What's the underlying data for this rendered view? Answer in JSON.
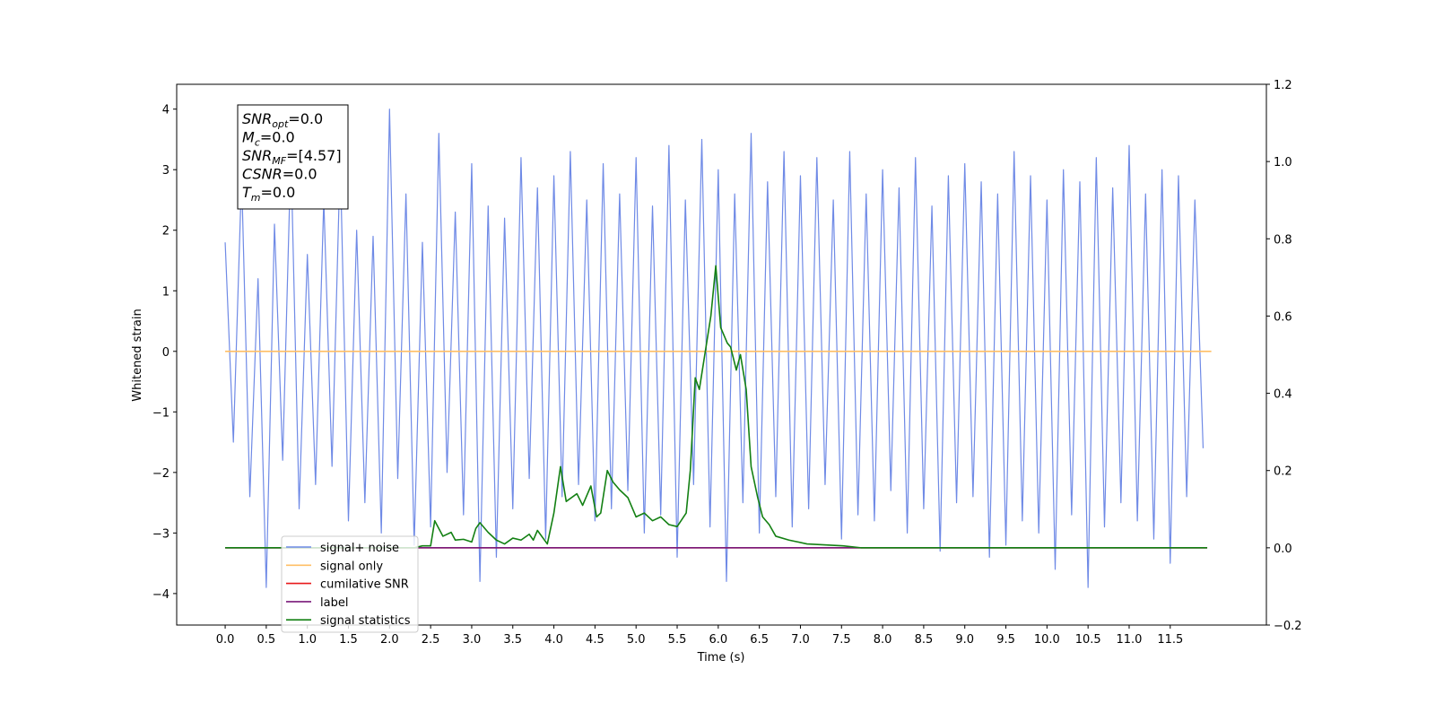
{
  "chart_data": {
    "type": "line",
    "xlabel": "Time (s)",
    "ylabel": "Whitened strain",
    "xlim": [
      -0.59,
      12.67
    ],
    "ylim": [
      -4.52,
      4.41
    ],
    "y2lim": [
      -0.2,
      1.2
    ],
    "xticks": [
      {
        "value": 0,
        "label": "0.0"
      },
      0.5,
      {
        "value": 1,
        "label": "1.0"
      },
      1.5,
      {
        "value": 2,
        "label": "2.0"
      },
      2.5,
      {
        "value": 3,
        "label": "3.0"
      },
      3.5,
      {
        "value": 4,
        "label": "4.0"
      },
      4.5,
      {
        "value": 5,
        "label": "5.0"
      },
      5.5,
      {
        "value": 6,
        "label": "6.0"
      },
      6.5,
      {
        "value": 7,
        "label": "7.0"
      },
      7.5,
      {
        "value": 8,
        "label": "8.0"
      },
      8.5,
      {
        "value": 9,
        "label": "9.0"
      },
      9.5,
      {
        "value": 10,
        "label": "10.0"
      },
      10.5,
      {
        "value": 11,
        "label": "11.0"
      },
      11.5
    ],
    "yticks": [
      {
        "value": -4,
        "label": "−4"
      },
      {
        "value": -3,
        "label": "−3"
      },
      {
        "value": -2,
        "label": "−2"
      },
      {
        "value": -1,
        "label": "−1"
      },
      0,
      1,
      2,
      3,
      4
    ],
    "y2ticks": [
      {
        "value": -0.2,
        "label": "−0.2"
      },
      {
        "value": 0,
        "label": "0.0"
      },
      0.2,
      0.4,
      0.6,
      0.8,
      {
        "value": 1,
        "label": "1.0"
      },
      1.2
    ],
    "annotation": [
      {
        "base": "SNR",
        "sub": "opt",
        "rest": "=0.0"
      },
      {
        "base": "M",
        "sub": "c",
        "rest": "=0.0"
      },
      {
        "base": "SNR",
        "sub": "MF",
        "rest": "=[4.57]"
      },
      {
        "base": "CSNR",
        "sub": null,
        "rest": "=0.0"
      },
      {
        "base": "T",
        "sub": "m",
        "rest": "=0.0"
      }
    ],
    "legend": "lower left",
    "series": [
      {
        "name": "signal+ noise",
        "color": "#6f8ae6",
        "axis": "y",
        "x": [
          0,
          0.1,
          0.2,
          0.3,
          0.4,
          0.5,
          0.6,
          0.7,
          0.8,
          0.9,
          1,
          1.1,
          1.2,
          1.3,
          1.4,
          1.5,
          1.6,
          1.7,
          1.8,
          1.9,
          2,
          2.1,
          2.2,
          2.3,
          2.4,
          2.5,
          2.6,
          2.7,
          2.8,
          2.9,
          3,
          3.1,
          3.2,
          3.3,
          3.4,
          3.5,
          3.6,
          3.7,
          3.8,
          3.9,
          4,
          4.1,
          4.2,
          4.3,
          4.4,
          4.5,
          4.6,
          4.7,
          4.8,
          4.9,
          5,
          5.1,
          5.2,
          5.3,
          5.4,
          5.5,
          5.6,
          5.7,
          5.8,
          5.9,
          6,
          6.1,
          6.2,
          6.3,
          6.4,
          6.5,
          6.6,
          6.7,
          6.8,
          6.9,
          7,
          7.1,
          7.2,
          7.3,
          7.4,
          7.5,
          7.6,
          7.7,
          7.8,
          7.9,
          8,
          8.1,
          8.2,
          8.3,
          8.4,
          8.5,
          8.6,
          8.7,
          8.8,
          8.9,
          9,
          9.1,
          9.2,
          9.3,
          9.4,
          9.5,
          9.6,
          9.7,
          9.8,
          9.9,
          10,
          10.1,
          10.2,
          10.3,
          10.4,
          10.5,
          10.6,
          10.7,
          10.8,
          10.9,
          11,
          11.1,
          11.2,
          11.3,
          11.4,
          11.5,
          11.6,
          11.7,
          11.8,
          11.9
        ],
        "values": [
          1.8,
          -1.5,
          2.9,
          -2.4,
          1.2,
          -3.9,
          2.1,
          -1.8,
          3.3,
          -2.6,
          1.6,
          -2.2,
          2.5,
          -1.9,
          3.2,
          -2.8,
          2.0,
          -2.5,
          1.9,
          -3.0,
          4.0,
          -2.1,
          2.6,
          -3.2,
          1.8,
          -2.9,
          3.6,
          -2.0,
          2.3,
          -2.7,
          3.1,
          -3.8,
          2.4,
          -3.4,
          2.2,
          -2.6,
          3.2,
          -2.1,
          2.7,
          -3.1,
          2.9,
          -2.4,
          3.3,
          -2.2,
          2.5,
          -2.8,
          3.1,
          -2.6,
          2.6,
          -2.3,
          3.2,
          -3.0,
          2.4,
          -2.7,
          3.4,
          -3.4,
          2.5,
          -2.2,
          3.5,
          -2.9,
          3.0,
          -3.8,
          2.6,
          -2.5,
          3.6,
          -3.0,
          2.8,
          -2.4,
          3.3,
          -2.9,
          2.9,
          -2.6,
          3.2,
          -2.2,
          2.5,
          -3.1,
          3.3,
          -2.7,
          2.6,
          -2.8,
          3.0,
          -2.3,
          2.7,
          -3.0,
          3.2,
          -2.6,
          2.4,
          -3.3,
          2.9,
          -2.5,
          3.1,
          -2.4,
          2.8,
          -3.4,
          2.6,
          -3.2,
          3.3,
          -2.8,
          2.9,
          -3.0,
          2.5,
          -3.6,
          3.0,
          -2.7,
          2.8,
          -3.9,
          3.2,
          -2.9,
          2.7,
          -2.5,
          3.4,
          -2.8,
          2.6,
          -3.1,
          3.0,
          -3.5,
          2.9,
          -2.4,
          2.5,
          -1.6
        ]
      },
      {
        "name": "signal only",
        "color": "#ffbf66",
        "axis": "y",
        "x": [
          0,
          12
        ],
        "values": [
          0,
          0
        ]
      },
      {
        "name": "cumilative SNR",
        "color": "#e8191a",
        "axis": "y2",
        "x": [
          0,
          11.95
        ],
        "values": [
          0,
          0
        ]
      },
      {
        "name": "label",
        "color": "#7a1a7a",
        "axis": "y2",
        "x": [
          0,
          11.95
        ],
        "values": [
          0,
          0
        ]
      },
      {
        "name": "signal statistics",
        "color": "#138013",
        "axis": "y2",
        "x": [
          0,
          2.3,
          2.4,
          2.5,
          2.55,
          2.65,
          2.75,
          2.8,
          2.9,
          3.0,
          3.05,
          3.1,
          3.2,
          3.3,
          3.4,
          3.5,
          3.6,
          3.7,
          3.75,
          3.8,
          3.92,
          4.0,
          4.08,
          4.15,
          4.28,
          4.35,
          4.45,
          4.52,
          4.57,
          4.65,
          4.72,
          4.8,
          4.9,
          5.0,
          5.1,
          5.2,
          5.3,
          5.4,
          5.5,
          5.61,
          5.66,
          5.72,
          5.77,
          5.91,
          5.97,
          6.03,
          6.11,
          6.15,
          6.22,
          6.27,
          6.34,
          6.4,
          6.48,
          6.54,
          6.62,
          6.7,
          6.86,
          7.08,
          7.52,
          7.74,
          11.95
        ],
        "values": [
          0,
          0,
          0.005,
          0.005,
          0.07,
          0.03,
          0.04,
          0.02,
          0.022,
          0.015,
          0.05,
          0.065,
          0.04,
          0.02,
          0.01,
          0.025,
          0.02,
          0.035,
          0.02,
          0.045,
          0.01,
          0.09,
          0.21,
          0.12,
          0.14,
          0.11,
          0.16,
          0.08,
          0.09,
          0.2,
          0.17,
          0.15,
          0.13,
          0.08,
          0.09,
          0.07,
          0.08,
          0.06,
          0.055,
          0.09,
          0.2,
          0.44,
          0.41,
          0.6,
          0.73,
          0.57,
          0.53,
          0.52,
          0.46,
          0.5,
          0.41,
          0.21,
          0.13,
          0.08,
          0.06,
          0.03,
          0.02,
          0.01,
          0.005,
          0,
          0
        ]
      }
    ]
  }
}
